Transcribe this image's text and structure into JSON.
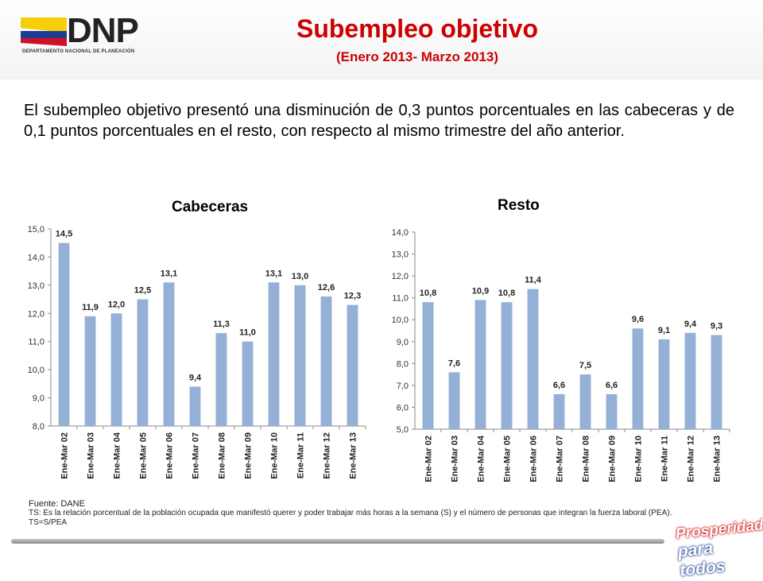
{
  "header": {
    "logo_text": "DNP",
    "logo_subtext": "DEPARTAMENTO NACIONAL DE PLANEACIÓN",
    "title": "Subempleo objetivo",
    "subtitle": "(Enero 2013- Marzo 2013)"
  },
  "body_text": "El subempleo objetivo presentó una disminución de 0,3 puntos porcentuales en las cabeceras y de 0,1 puntos porcentuales en el resto, con respecto al mismo trimestre del año anterior.",
  "chart_data": [
    {
      "type": "bar",
      "title": "Cabeceras",
      "categories": [
        "Ene-Mar 02",
        "Ene-Mar 03",
        "Ene-Mar 04",
        "Ene-Mar 05",
        "Ene-Mar 06",
        "Ene-Mar 07",
        "Ene-Mar 08",
        "Ene-Mar 09",
        "Ene-Mar 10",
        "Ene-Mar 11",
        "Ene-Mar 12",
        "Ene-Mar 13"
      ],
      "values": [
        14.5,
        11.9,
        12.0,
        12.5,
        13.1,
        9.4,
        11.3,
        11.0,
        13.1,
        13.0,
        12.6,
        12.3
      ],
      "value_labels": [
        "14,5",
        "11,9",
        "12,0",
        "12,5",
        "13,1",
        "9,4",
        "11,3",
        "11,0",
        "13,1",
        "13,0",
        "12,6",
        "12,3"
      ],
      "ylim": [
        8.0,
        15.0
      ],
      "yticks": [
        "8,0",
        "9,0",
        "10,0",
        "11,0",
        "12,0",
        "13,0",
        "14,0",
        "15,0"
      ],
      "bar_color": "#95b0d6",
      "grid": false
    },
    {
      "type": "bar",
      "title": "Resto",
      "categories": [
        "Ene-Mar 02",
        "Ene-Mar 03",
        "Ene-Mar 04",
        "Ene-Mar 05",
        "Ene-Mar 06",
        "Ene-Mar 07",
        "Ene-Mar 08",
        "Ene-Mar 09",
        "Ene-Mar 10",
        "Ene-Mar 11",
        "Ene-Mar 12",
        "Ene-Mar 13"
      ],
      "values": [
        10.8,
        7.6,
        10.9,
        10.8,
        11.4,
        6.6,
        7.5,
        6.6,
        9.6,
        9.1,
        9.4,
        9.3
      ],
      "value_labels": [
        "10,8",
        "7,6",
        "10,9",
        "10,8",
        "11,4",
        "6,6",
        "7,5",
        "6,6",
        "9,6",
        "9,1",
        "9,4",
        "9,3"
      ],
      "ylim": [
        5.0,
        14.0
      ],
      "yticks": [
        "5,0",
        "6,0",
        "7,0",
        "8,0",
        "9,0",
        "10,0",
        "11,0",
        "12,0",
        "13,0",
        "14,0"
      ],
      "bar_color": "#95b0d6",
      "grid": false
    }
  ],
  "footnote": {
    "source": "Fuente: DANE",
    "definition": "TS:  Es la relación porcentual de la población ocupada que manifestó querer y poder trabajar más horas a la semana (S) y el número de personas que integran la fuerza laboral (PEA). TS=S/PEA"
  },
  "slogan": {
    "line1": "Prosperidad",
    "line2": "para todos"
  },
  "colors": {
    "title": "#cc0000",
    "bars": "#95b0d6"
  }
}
